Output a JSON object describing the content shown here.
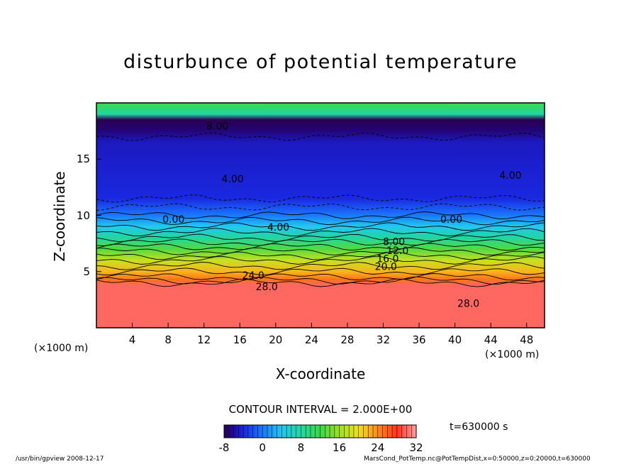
{
  "chart_data": {
    "type": "heatmap",
    "title": "disturbunce of potential temperature",
    "xlabel": "X-coordinate",
    "ylabel": "Z-coordinate",
    "x_unit": "(×1000 m)",
    "xlim": [
      0,
      50
    ],
    "ylim": [
      0,
      20
    ],
    "x_ticks": [
      "4",
      "8",
      "12",
      "16",
      "20",
      "24",
      "28",
      "32",
      "36",
      "40",
      "44",
      "48"
    ],
    "y_ticks": [
      "5",
      "10",
      "15"
    ],
    "contour_interval": "CONTOUR INTERVAL = 2.000E+00",
    "colorbar": {
      "ticks": [
        "-8",
        "0",
        "8",
        "16",
        "24",
        "32"
      ],
      "range": [
        -8,
        32
      ]
    },
    "contour_labels": [
      {
        "text": "8.00",
        "x": 13.5,
        "z": 17.9
      },
      {
        "text": "4.00",
        "x": 15.2,
        "z": 13.2
      },
      {
        "text": "4.00",
        "x": 46.2,
        "z": 13.5
      },
      {
        "text": "0.00",
        "x": 8.6,
        "z": 9.6
      },
      {
        "text": "4.00",
        "x": 20.3,
        "z": 8.9
      },
      {
        "text": "0.00",
        "x": 39.6,
        "z": 9.6
      },
      {
        "text": "8.00",
        "x": 33.2,
        "z": 7.6
      },
      {
        "text": "12.0",
        "x": 33.6,
        "z": 6.8
      },
      {
        "text": "16.0",
        "x": 32.5,
        "z": 6.1
      },
      {
        "text": "20.0",
        "x": 32.3,
        "z": 5.4
      },
      {
        "text": "24.0",
        "x": 17.5,
        "z": 4.6
      },
      {
        "text": "28.0",
        "x": 19.0,
        "z": 3.6
      },
      {
        "text": "28.0",
        "x": 41.5,
        "z": 2.1
      }
    ],
    "field_profile_by_z": [
      {
        "z": 0,
        "value": 30
      },
      {
        "z": 3.8,
        "value": 30
      },
      {
        "z": 4.3,
        "value": 25
      },
      {
        "z": 5.0,
        "value": 22
      },
      {
        "z": 6.0,
        "value": 18
      },
      {
        "z": 7.0,
        "value": 13
      },
      {
        "z": 8.0,
        "value": 8
      },
      {
        "z": 9.0,
        "value": 4
      },
      {
        "z": 10.0,
        "value": 0
      },
      {
        "z": 11.5,
        "value": -4
      },
      {
        "z": 16.5,
        "value": -5
      },
      {
        "z": 17.5,
        "value": -7
      },
      {
        "z": 18.5,
        "value": -8
      },
      {
        "z": 19.0,
        "value": 8
      },
      {
        "z": 20.0,
        "value": 12
      }
    ]
  },
  "time_label": "t=630000 s",
  "footer": {
    "left": "/usr/bin/gpview   2008-12-17",
    "right": "MarsCond_PotTemp.nc@PotTempDist,x=0:50000,z=0:20000,t=630000"
  }
}
